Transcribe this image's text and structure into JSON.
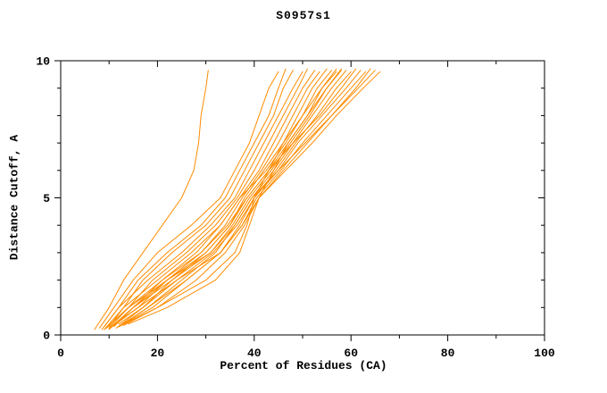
{
  "chart_data": {
    "type": "line",
    "title": "S0957s1",
    "xlabel": "Percent of Residues (CA)",
    "ylabel": "Distance Cutoff, A",
    "xlim": [
      0,
      100
    ],
    "ylim": [
      0,
      10
    ],
    "xticks": [
      0,
      20,
      40,
      60,
      80,
      100
    ],
    "yticks": [
      0,
      5,
      10
    ],
    "xminor_step": 10,
    "yminor_step": 1,
    "grid": false,
    "legend": "none",
    "line_color": "#FF8C00",
    "axis_color": "#000000",
    "background": "#ffffff",
    "series": [
      [
        [
          7,
          0.2
        ],
        [
          10,
          1
        ],
        [
          13,
          2
        ],
        [
          17,
          3
        ],
        [
          21,
          4
        ],
        [
          25,
          5
        ],
        [
          27.5,
          6
        ],
        [
          28.5,
          7
        ],
        [
          29,
          8
        ],
        [
          30,
          9
        ],
        [
          30.5,
          9.65
        ]
      ],
      [
        [
          8,
          0.25
        ],
        [
          11,
          1
        ],
        [
          15,
          2
        ],
        [
          20,
          3
        ],
        [
          27,
          4
        ],
        [
          33,
          5
        ],
        [
          36,
          6
        ],
        [
          39,
          7
        ],
        [
          41,
          8
        ],
        [
          43,
          9
        ],
        [
          45,
          9.6
        ]
      ],
      [
        [
          9,
          0.3
        ],
        [
          12,
          1
        ],
        [
          16,
          2
        ],
        [
          22,
          3
        ],
        [
          29,
          4
        ],
        [
          34,
          5
        ],
        [
          37,
          6
        ],
        [
          40,
          7
        ],
        [
          43,
          8
        ],
        [
          45,
          9
        ],
        [
          46.5,
          9.7
        ]
      ],
      [
        [
          10,
          0.3
        ],
        [
          13,
          1
        ],
        [
          17,
          2
        ],
        [
          23,
          3
        ],
        [
          30,
          4
        ],
        [
          35,
          5
        ],
        [
          38,
          6
        ],
        [
          41,
          7
        ],
        [
          44,
          8
        ],
        [
          46,
          9
        ],
        [
          48,
          9.65
        ]
      ],
      [
        [
          8.5,
          0.2
        ],
        [
          12,
          1
        ],
        [
          18,
          2
        ],
        [
          25,
          3
        ],
        [
          31,
          4
        ],
        [
          36,
          5
        ],
        [
          39,
          6
        ],
        [
          42,
          7
        ],
        [
          45,
          8
        ],
        [
          48,
          9
        ],
        [
          50,
          9.6
        ]
      ],
      [
        [
          9.5,
          0.25
        ],
        [
          14,
          1
        ],
        [
          19,
          2
        ],
        [
          26,
          3
        ],
        [
          32,
          4
        ],
        [
          36.5,
          5
        ],
        [
          40,
          6
        ],
        [
          43,
          7
        ],
        [
          46,
          8
        ],
        [
          49,
          9
        ],
        [
          51,
          9.7
        ]
      ],
      [
        [
          10.5,
          0.3
        ],
        [
          15,
          1
        ],
        [
          21,
          2
        ],
        [
          28,
          3
        ],
        [
          33,
          4
        ],
        [
          37,
          5
        ],
        [
          41,
          6
        ],
        [
          44,
          7
        ],
        [
          47,
          8
        ],
        [
          50,
          9
        ],
        [
          52.5,
          9.65
        ]
      ],
      [
        [
          11,
          0.35
        ],
        [
          16,
          1
        ],
        [
          22,
          2
        ],
        [
          29,
          3
        ],
        [
          34,
          4
        ],
        [
          37.5,
          5
        ],
        [
          41.5,
          6
        ],
        [
          45,
          7
        ],
        [
          48,
          8
        ],
        [
          51,
          9
        ],
        [
          53.5,
          9.6
        ]
      ],
      [
        [
          12,
          0.4
        ],
        [
          17,
          1
        ],
        [
          23,
          2
        ],
        [
          30,
          3
        ],
        [
          35,
          4
        ],
        [
          38,
          5
        ],
        [
          42,
          6
        ],
        [
          46,
          7
        ],
        [
          49,
          8
        ],
        [
          52,
          9
        ],
        [
          55,
          9.7
        ]
      ],
      [
        [
          9,
          0.2
        ],
        [
          13,
          1
        ],
        [
          20,
          2
        ],
        [
          27,
          3
        ],
        [
          33,
          4
        ],
        [
          37,
          5
        ],
        [
          42.5,
          6
        ],
        [
          46.5,
          7
        ],
        [
          50,
          8
        ],
        [
          53,
          9
        ],
        [
          56,
          9.65
        ]
      ],
      [
        [
          10,
          0.25
        ],
        [
          14,
          1
        ],
        [
          21,
          2
        ],
        [
          29,
          3
        ],
        [
          34.5,
          4
        ],
        [
          38.5,
          5
        ],
        [
          43,
          6
        ],
        [
          47,
          7
        ],
        [
          51,
          8
        ],
        [
          54,
          9
        ],
        [
          57,
          9.6
        ]
      ],
      [
        [
          11,
          0.3
        ],
        [
          15,
          1
        ],
        [
          23,
          2
        ],
        [
          31,
          3
        ],
        [
          35.5,
          4
        ],
        [
          39,
          5
        ],
        [
          43.5,
          6
        ],
        [
          47.5,
          7
        ],
        [
          51.5,
          8
        ],
        [
          55,
          9
        ],
        [
          58,
          9.7
        ]
      ],
      [
        [
          12.5,
          0.35
        ],
        [
          18,
          1
        ],
        [
          25,
          2
        ],
        [
          32,
          3
        ],
        [
          36,
          4
        ],
        [
          39.5,
          5
        ],
        [
          44,
          6
        ],
        [
          48,
          7
        ],
        [
          52,
          8
        ],
        [
          56,
          9
        ],
        [
          59,
          9.65
        ]
      ],
      [
        [
          13,
          0.4
        ],
        [
          19,
          1
        ],
        [
          26,
          2
        ],
        [
          33,
          3
        ],
        [
          37,
          4
        ],
        [
          40,
          5
        ],
        [
          44.5,
          6
        ],
        [
          48.5,
          7
        ],
        [
          53,
          8
        ],
        [
          57,
          9
        ],
        [
          60,
          9.6
        ]
      ],
      [
        [
          10,
          0.2
        ],
        [
          15,
          1
        ],
        [
          22,
          2
        ],
        [
          30,
          3
        ],
        [
          35,
          4
        ],
        [
          38.5,
          5
        ],
        [
          43,
          6
        ],
        [
          48,
          7
        ],
        [
          53.5,
          8
        ],
        [
          58,
          9
        ],
        [
          61,
          9.7
        ]
      ],
      [
        [
          11.5,
          0.25
        ],
        [
          17,
          1
        ],
        [
          24,
          2
        ],
        [
          31.5,
          3
        ],
        [
          36.5,
          4
        ],
        [
          40,
          5
        ],
        [
          45,
          6
        ],
        [
          49,
          7
        ],
        [
          54,
          8
        ],
        [
          59,
          9
        ],
        [
          62,
          9.65
        ]
      ],
      [
        [
          12,
          0.3
        ],
        [
          18,
          1
        ],
        [
          26,
          2
        ],
        [
          33,
          3
        ],
        [
          37.5,
          4
        ],
        [
          40.5,
          5
        ],
        [
          45.5,
          6
        ],
        [
          50,
          7
        ],
        [
          55,
          8
        ],
        [
          60,
          9
        ],
        [
          63,
          9.6
        ]
      ],
      [
        [
          13,
          0.35
        ],
        [
          20,
          1
        ],
        [
          28,
          2
        ],
        [
          34,
          3
        ],
        [
          38,
          4
        ],
        [
          41,
          5
        ],
        [
          46,
          6
        ],
        [
          51,
          7
        ],
        [
          56,
          8
        ],
        [
          61,
          9
        ],
        [
          64,
          9.7
        ]
      ],
      [
        [
          9,
          0.2
        ],
        [
          14,
          1
        ],
        [
          22,
          2
        ],
        [
          31,
          3
        ],
        [
          36,
          4
        ],
        [
          39.5,
          5
        ],
        [
          45,
          6
        ],
        [
          50.5,
          7
        ],
        [
          56,
          8
        ],
        [
          61.5,
          9
        ],
        [
          65,
          9.65
        ]
      ],
      [
        [
          10,
          0.25
        ],
        [
          16,
          1
        ],
        [
          24,
          2
        ],
        [
          33,
          3
        ],
        [
          37.5,
          4
        ],
        [
          41,
          5
        ],
        [
          46.5,
          6
        ],
        [
          52,
          7
        ],
        [
          57,
          8
        ],
        [
          62.5,
          9
        ],
        [
          66,
          9.6
        ]
      ],
      [
        [
          12,
          0.3
        ],
        [
          20,
          1
        ],
        [
          30,
          2
        ],
        [
          36,
          3
        ],
        [
          38.5,
          4
        ],
        [
          40,
          5
        ],
        [
          43,
          6
        ],
        [
          46,
          7
        ],
        [
          50,
          8
        ],
        [
          54,
          9
        ],
        [
          57,
          9.7
        ]
      ],
      [
        [
          14,
          0.4
        ],
        [
          22,
          1
        ],
        [
          32,
          2
        ],
        [
          37,
          3
        ],
        [
          39,
          4
        ],
        [
          41,
          5
        ],
        [
          44,
          6
        ],
        [
          47,
          7
        ],
        [
          51,
          8
        ],
        [
          55,
          9
        ],
        [
          58,
          9.65
        ]
      ]
    ]
  }
}
